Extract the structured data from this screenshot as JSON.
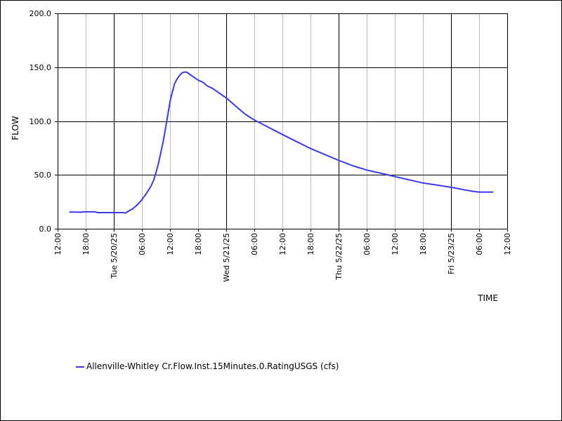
{
  "chart_data": {
    "type": "line",
    "xlabel": "TIME",
    "ylabel": "FLOW",
    "ylim": [
      0,
      200
    ],
    "yticks": [
      "0.0",
      "50.0",
      "100.0",
      "150.0",
      "200.0"
    ],
    "xlim": [
      "2025-05-19 12:00",
      "2025-05-23 12:00"
    ],
    "xticks": [
      {
        "t": "2025-05-19 12:00",
        "label": "12:00",
        "major": false
      },
      {
        "t": "2025-05-19 18:00",
        "label": "18:00",
        "major": false
      },
      {
        "t": "2025-05-20 00:00",
        "label": "Tue 5/20/25",
        "major": true
      },
      {
        "t": "2025-05-20 06:00",
        "label": "06:00",
        "major": false
      },
      {
        "t": "2025-05-20 12:00",
        "label": "12:00",
        "major": false
      },
      {
        "t": "2025-05-20 18:00",
        "label": "18:00",
        "major": false
      },
      {
        "t": "2025-05-21 00:00",
        "label": "Wed 5/21/25",
        "major": true
      },
      {
        "t": "2025-05-21 06:00",
        "label": "06:00",
        "major": false
      },
      {
        "t": "2025-05-21 12:00",
        "label": "12:00",
        "major": false
      },
      {
        "t": "2025-05-21 18:00",
        "label": "18:00",
        "major": false
      },
      {
        "t": "2025-05-22 00:00",
        "label": "Thu 5/22/25",
        "major": true
      },
      {
        "t": "2025-05-22 06:00",
        "label": "06:00",
        "major": false
      },
      {
        "t": "2025-05-22 12:00",
        "label": "12:00",
        "major": false
      },
      {
        "t": "2025-05-22 18:00",
        "label": "18:00",
        "major": false
      },
      {
        "t": "2025-05-23 00:00",
        "label": "Fri 5/23/25",
        "major": true
      },
      {
        "t": "2025-05-23 06:00",
        "label": "06:00",
        "major": false
      },
      {
        "t": "2025-05-23 12:00",
        "label": "12:00",
        "major": false
      }
    ],
    "grid": true,
    "legend_position": "bottom-left",
    "series": [
      {
        "name": "Allenville-Whitley Cr.Flow.Inst.15Minutes.0.RatingUSGS (cfs)",
        "color": "#3a3ae8",
        "points": [
          [
            "2025-05-19 14:30",
            15.5
          ],
          [
            "2025-05-19 16:00",
            15.5
          ],
          [
            "2025-05-19 17:00",
            15.3
          ],
          [
            "2025-05-19 17:30",
            15.7
          ],
          [
            "2025-05-19 20:00",
            15.7
          ],
          [
            "2025-05-19 20:30",
            15.0
          ],
          [
            "2025-05-19 22:00",
            15.0
          ],
          [
            "2025-05-20 00:00",
            15.0
          ],
          [
            "2025-05-20 02:00",
            15.0
          ],
          [
            "2025-05-20 02:30",
            14.5
          ],
          [
            "2025-05-20 03:00",
            16.0
          ],
          [
            "2025-05-20 04:00",
            18.5
          ],
          [
            "2025-05-20 05:00",
            22.0
          ],
          [
            "2025-05-20 06:00",
            27.0
          ],
          [
            "2025-05-20 07:00",
            33.0
          ],
          [
            "2025-05-20 08:00",
            40.0
          ],
          [
            "2025-05-20 08:30",
            45.0
          ],
          [
            "2025-05-20 09:00",
            52.0
          ],
          [
            "2025-05-20 09:30",
            60.0
          ],
          [
            "2025-05-20 10:00",
            70.0
          ],
          [
            "2025-05-20 10:30",
            80.0
          ],
          [
            "2025-05-20 11:00",
            92.0
          ],
          [
            "2025-05-20 11:30",
            105.0
          ],
          [
            "2025-05-20 12:00",
            118.0
          ],
          [
            "2025-05-20 12:30",
            127.0
          ],
          [
            "2025-05-20 13:00",
            135.0
          ],
          [
            "2025-05-20 13:30",
            139.0
          ],
          [
            "2025-05-20 14:00",
            142.0
          ],
          [
            "2025-05-20 14:30",
            144.5
          ],
          [
            "2025-05-20 15:00",
            145.5
          ],
          [
            "2025-05-20 15:30",
            145.5
          ],
          [
            "2025-05-20 16:00",
            144.0
          ],
          [
            "2025-05-20 17:00",
            141.0
          ],
          [
            "2025-05-20 18:00",
            138.0
          ],
          [
            "2025-05-20 19:00",
            136.0
          ],
          [
            "2025-05-20 20:00",
            132.5
          ],
          [
            "2025-05-20 21:00",
            130.5
          ],
          [
            "2025-05-20 22:00",
            127.5
          ],
          [
            "2025-05-21 00:00",
            121.5
          ],
          [
            "2025-05-21 02:00",
            114.0
          ],
          [
            "2025-05-21 04:00",
            106.5
          ],
          [
            "2025-05-21 06:00",
            101.0
          ],
          [
            "2025-05-21 08:00",
            96.5
          ],
          [
            "2025-05-21 10:00",
            92.0
          ],
          [
            "2025-05-21 12:00",
            87.5
          ],
          [
            "2025-05-21 15:00",
            81.0
          ],
          [
            "2025-05-21 18:00",
            74.5
          ],
          [
            "2025-05-21 21:00",
            69.0
          ],
          [
            "2025-05-22 00:00",
            63.5
          ],
          [
            "2025-05-22 03:00",
            58.5
          ],
          [
            "2025-05-22 06:00",
            54.5
          ],
          [
            "2025-05-22 09:00",
            51.5
          ],
          [
            "2025-05-22 12:00",
            48.5
          ],
          [
            "2025-05-22 15:00",
            45.5
          ],
          [
            "2025-05-22 18:00",
            42.5
          ],
          [
            "2025-05-22 21:00",
            40.5
          ],
          [
            "2025-05-23 00:00",
            38.5
          ],
          [
            "2025-05-23 03:00",
            36.0
          ],
          [
            "2025-05-23 05:00",
            34.5
          ],
          [
            "2025-05-23 06:00",
            34.0
          ],
          [
            "2025-05-23 09:00",
            34.0
          ]
        ]
      }
    ]
  }
}
